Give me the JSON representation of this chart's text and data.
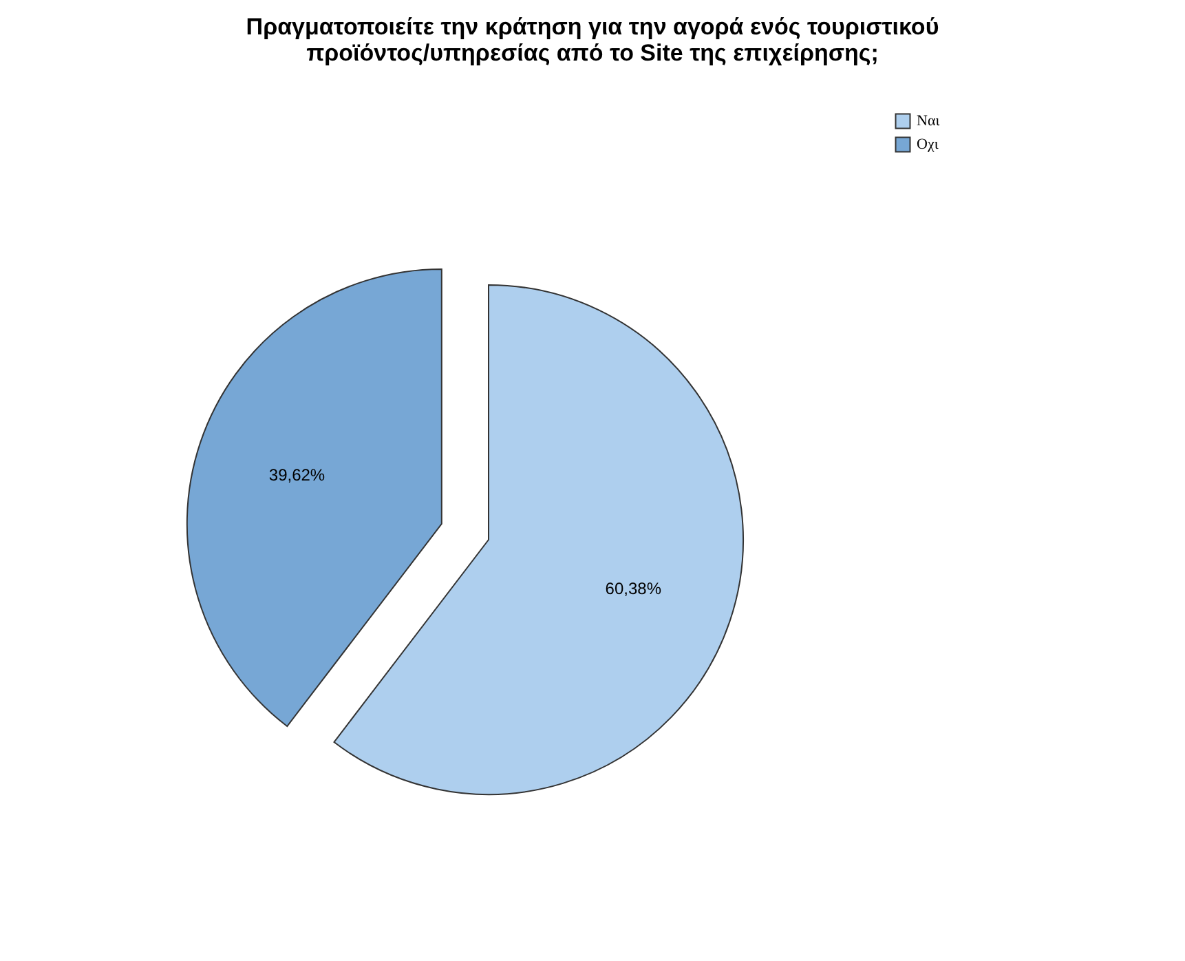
{
  "chart_data": {
    "type": "pie",
    "title": [
      "Πραγματοποιείτε την κράτηση για την αγορά ενός τουριστικού",
      "προϊόντος/υπηρεσίας από το Site της επιχείρησης;"
    ],
    "categories": [
      "Ναι",
      "Οχι"
    ],
    "values": [
      60.38,
      39.62
    ],
    "colors": [
      "#aecfee",
      "#77a7d5"
    ],
    "value_labels": [
      "60,38%",
      "39,62%"
    ],
    "legend": "top right"
  }
}
